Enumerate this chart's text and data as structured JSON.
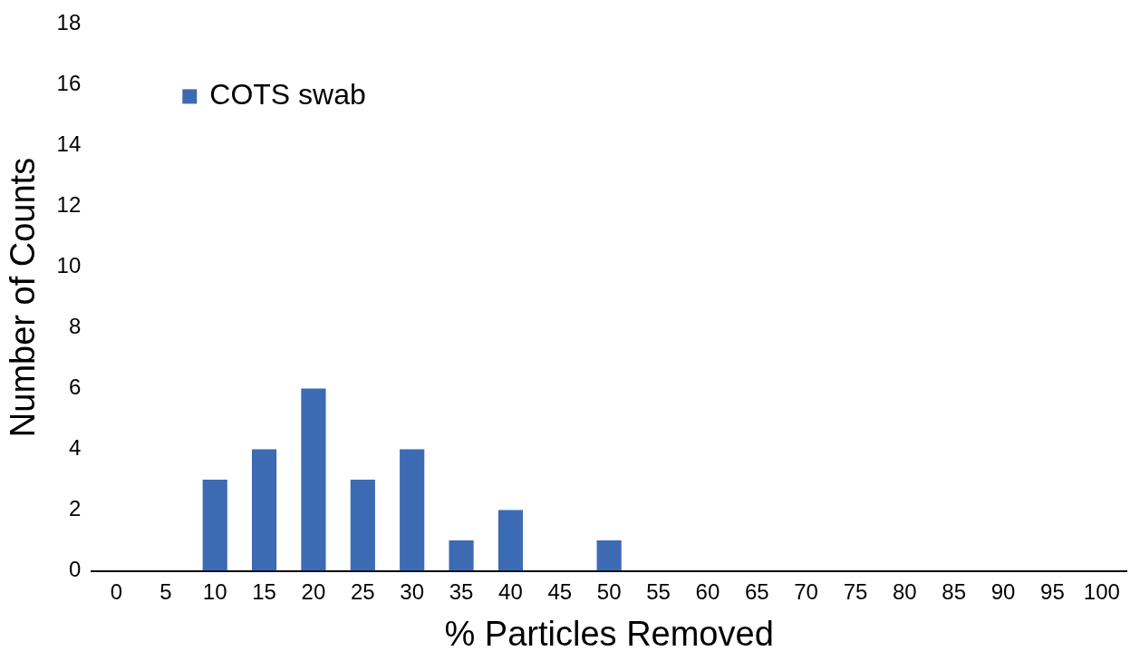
{
  "chart_data": {
    "type": "bar",
    "xlabel": "% Particles Removed",
    "ylabel": "Number of Counts",
    "categories": [
      "0",
      "5",
      "10",
      "15",
      "20",
      "25",
      "30",
      "35",
      "40",
      "45",
      "50",
      "55",
      "60",
      "65",
      "70",
      "75",
      "80",
      "85",
      "90",
      "95",
      "100"
    ],
    "series": [
      {
        "name": "COTS swab",
        "color": "#3d6bb3",
        "values": [
          0,
          0,
          3,
          4,
          6,
          3,
          4,
          1,
          2,
          0,
          1,
          0,
          0,
          0,
          0,
          0,
          0,
          0,
          0,
          0,
          0
        ]
      }
    ],
    "ylim": [
      0,
      18
    ],
    "yticks": [
      0,
      2,
      4,
      6,
      8,
      10,
      12,
      14,
      16,
      18
    ],
    "grid": false,
    "legend": "top left"
  }
}
